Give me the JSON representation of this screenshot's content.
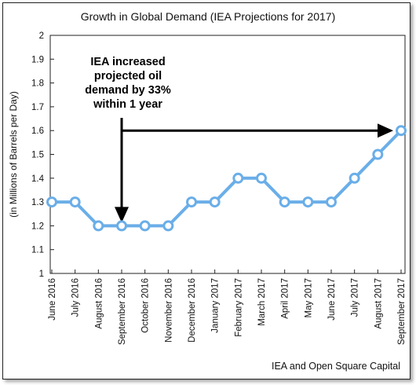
{
  "chart_data": {
    "type": "line",
    "title": "Growth in Global Demand (IEA Projections for 2017)",
    "xlabel": "",
    "ylabel": "(in Millions of Barrels per Day)",
    "categories": [
      "June 2016",
      "July 2016",
      "August 2016",
      "September 2016",
      "October 2016",
      "November 2016",
      "December 2016",
      "January 2017",
      "February 2017",
      "March 2017",
      "April 2017",
      "May 2017",
      "June 2017",
      "July 2017",
      "August 2017",
      "September 2017"
    ],
    "values": [
      1.3,
      1.3,
      1.2,
      1.2,
      1.2,
      1.2,
      1.3,
      1.3,
      1.4,
      1.4,
      1.3,
      1.3,
      1.3,
      1.4,
      1.5,
      1.6
    ],
    "ylim": [
      1,
      2
    ],
    "yticks": [
      "1",
      "1.1",
      "1.2",
      "1.3",
      "1.4",
      "1.5",
      "1.6",
      "1.7",
      "1.8",
      "1.9",
      "2"
    ],
    "grid": false,
    "annotation": [
      "IEA increased",
      "projected oil",
      "demand by 33%",
      "within 1 year"
    ],
    "source": "IEA and Open Square Capital",
    "colors": {
      "line": "#6aaee8",
      "marker_fill": "#ffffff",
      "arrow": "#000000"
    }
  }
}
